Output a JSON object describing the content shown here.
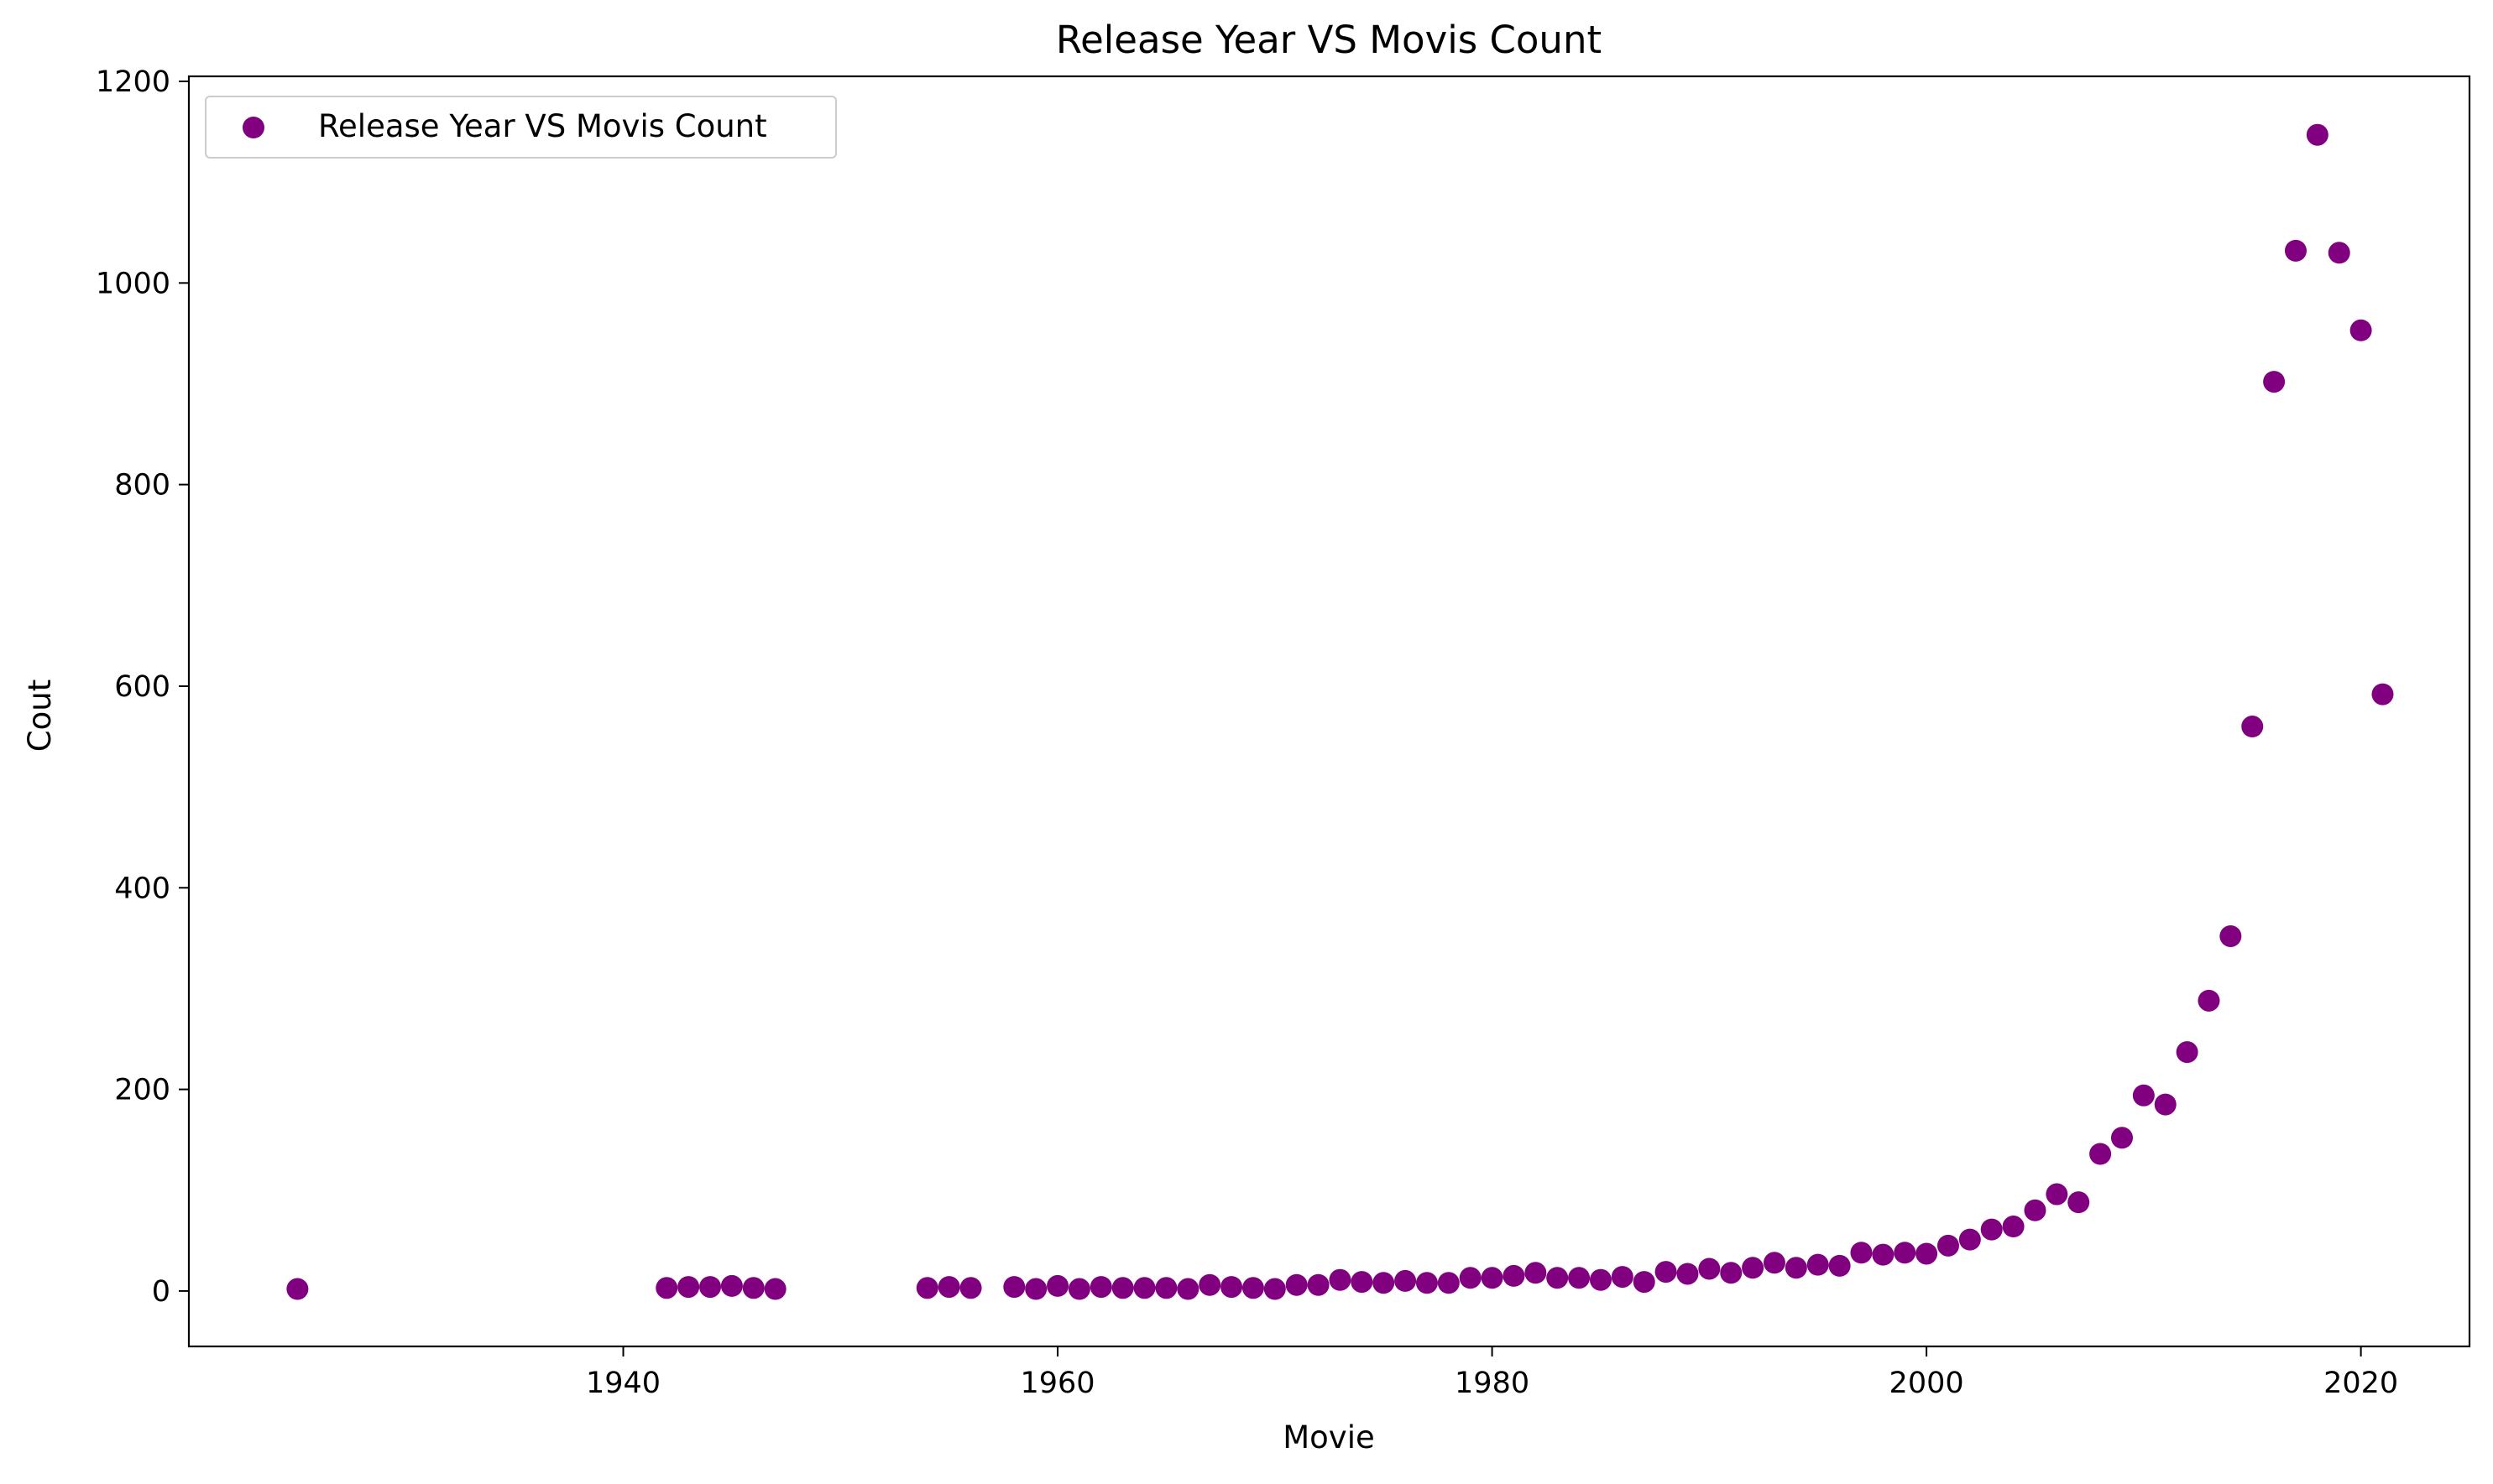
{
  "chart_data": {
    "type": "scatter",
    "title": "Release Year VS Movis Count",
    "xlabel": "Movie",
    "ylabel": "Cout",
    "xlim": [
      1920,
      2025
    ],
    "ylim": [
      -55,
      1205
    ],
    "xticks": [
      1940,
      1960,
      1980,
      2000,
      2020
    ],
    "yticks": [
      0,
      200,
      400,
      600,
      800,
      1000,
      1200
    ],
    "grid": false,
    "legend_position": "top-left",
    "series": [
      {
        "name": "Release Year VS Movis Count",
        "color": "#800080",
        "x": [
          1925,
          1942,
          1943,
          1944,
          1945,
          1946,
          1947,
          1954,
          1955,
          1956,
          1958,
          1959,
          1960,
          1961,
          1962,
          1963,
          1964,
          1965,
          1966,
          1967,
          1968,
          1969,
          1970,
          1971,
          1972,
          1973,
          1974,
          1975,
          1976,
          1977,
          1978,
          1979,
          1980,
          1981,
          1982,
          1983,
          1984,
          1985,
          1986,
          1987,
          1988,
          1989,
          1990,
          1991,
          1992,
          1993,
          1994,
          1995,
          1996,
          1997,
          1998,
          1999,
          2000,
          2001,
          2002,
          2003,
          2004,
          2005,
          2006,
          2007,
          2008,
          2009,
          2010,
          2011,
          2012,
          2013,
          2014,
          2015,
          2016,
          2017,
          2018,
          2019,
          2020,
          2021
        ],
        "y": [
          2,
          3,
          4,
          4,
          5,
          3,
          2,
          3,
          4,
          3,
          4,
          2,
          5,
          2,
          4,
          3,
          3,
          3,
          2,
          6,
          4,
          3,
          2,
          6,
          6,
          11,
          9,
          8,
          10,
          8,
          8,
          13,
          13,
          15,
          18,
          13,
          13,
          11,
          14,
          9,
          19,
          17,
          22,
          18,
          23,
          28,
          23,
          26,
          25,
          38,
          36,
          38,
          37,
          45,
          51,
          61,
          64,
          80,
          96,
          88,
          136,
          152,
          194,
          185,
          237,
          288,
          352,
          560,
          902,
          1032,
          1147,
          1030,
          953,
          592
        ]
      }
    ]
  }
}
